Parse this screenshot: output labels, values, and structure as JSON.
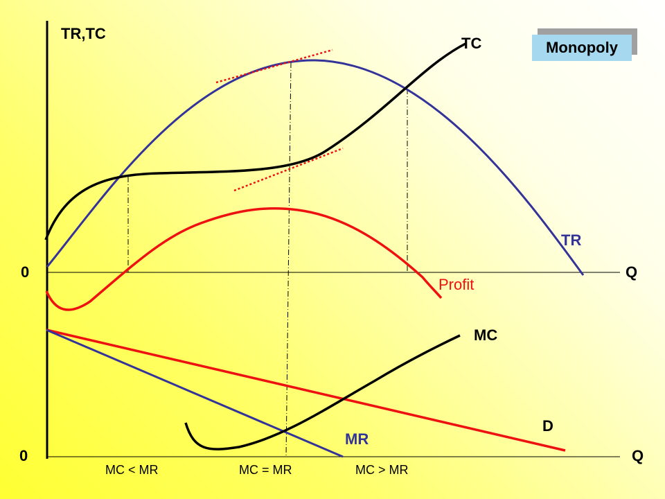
{
  "title_badge": "Monopoly",
  "labels": {
    "y_axis_top": "TR,TC",
    "origin_top": "0",
    "origin_bottom": "0",
    "q_top": "Q",
    "q_bottom": "Q",
    "tc": "TC",
    "tr": "TR",
    "profit": "Profit",
    "mc": "MC",
    "mr": "MR",
    "d": "D",
    "cond_left": "MC < MR",
    "cond_mid": "MC = MR",
    "cond_right": "MC > MR"
  },
  "colors": {
    "tr": "#333399",
    "tc": "#000000",
    "profit": "#ee1111",
    "mc": "#000000",
    "mr": "#333399",
    "d": "#ee1111",
    "tangent": "#ee1111",
    "badge": "#a6d8f0"
  }
}
